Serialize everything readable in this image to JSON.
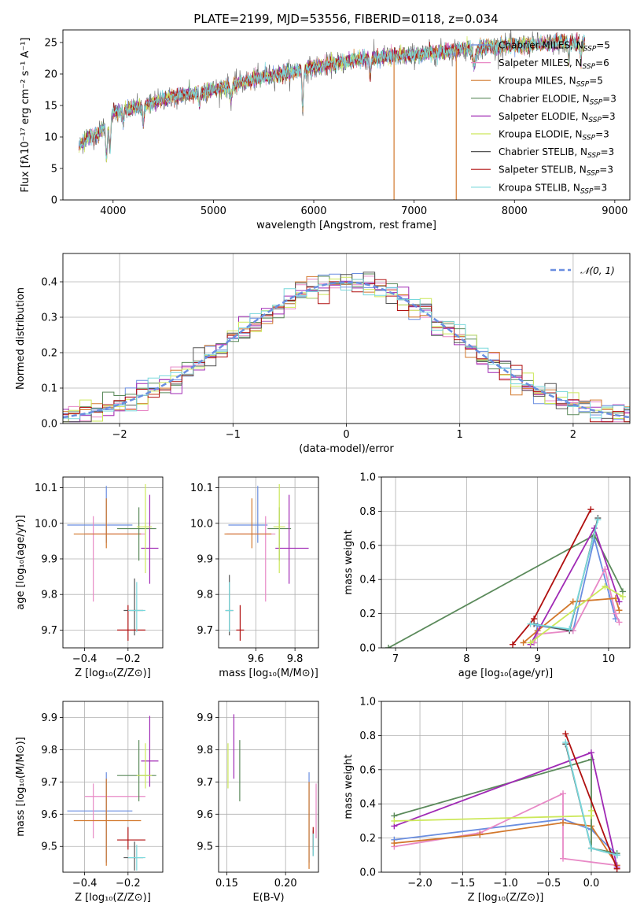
{
  "title": "PLATE=2199, MJD=53556, FIBERID=0118, z=0.034",
  "models": [
    {
      "name": "Chabrier MILES, N",
      "sub": "SSP",
      "eq": "=5",
      "color": "#6a8ee0"
    },
    {
      "name": "Salpeter MILES, N",
      "sub": "SSP",
      "eq": "=6",
      "color": "#e889c6"
    },
    {
      "name": "Kroupa MILES, N",
      "sub": "SSP",
      "eq": "=5",
      "color": "#d2782c"
    },
    {
      "name": "Chabrier ELODIE, N",
      "sub": "SSP",
      "eq": "=3",
      "color": "#5b8a5b"
    },
    {
      "name": "Salpeter ELODIE, N",
      "sub": "SSP",
      "eq": "=3",
      "color": "#a02ab5"
    },
    {
      "name": "Kroupa ELODIE, N",
      "sub": "SSP",
      "eq": "=3",
      "color": "#cce85a"
    },
    {
      "name": "Chabrier STELIB, N",
      "sub": "SSP",
      "eq": "=3",
      "color": "#555555"
    },
    {
      "name": "Salpeter STELIB, N",
      "sub": "SSP",
      "eq": "=3",
      "color": "#b01010"
    },
    {
      "name": "Kroupa STELIB, N",
      "sub": "SSP",
      "eq": "=3",
      "color": "#78d8dc"
    }
  ],
  "chart_data": [
    {
      "id": "spectrum",
      "type": "line",
      "xlabel": "wavelength [Angstrom, rest frame]",
      "ylabel": "Flux [fλ10⁻¹⁷ erg cm⁻² s⁻¹ A⁻¹]",
      "xlim": [
        3500,
        9150
      ],
      "ylim": [
        0,
        27
      ],
      "xticks": [
        4000,
        5000,
        6000,
        7000,
        8000,
        9000
      ],
      "yticks": [
        0,
        5,
        10,
        15,
        20,
        25
      ],
      "x_range": [
        3660,
        8700
      ],
      "continuum": {
        "x": [
          3660,
          3750,
          3850,
          3950,
          4000,
          4200,
          4500,
          5000,
          5500,
          6000,
          6500,
          7000,
          7500,
          8000,
          8500,
          8700
        ],
        "y": [
          8.5,
          10,
          10.5,
          12.5,
          14,
          14.5,
          16,
          17.5,
          19.5,
          21,
          22.5,
          23,
          24,
          24.5,
          25,
          24.8
        ]
      },
      "dips": [
        {
          "x": 3934,
          "depth": 5.5,
          "w": 12
        },
        {
          "x": 3969,
          "depth": 5,
          "w": 12
        },
        {
          "x": 4102,
          "depth": 2.5,
          "w": 8
        },
        {
          "x": 4300,
          "depth": 3,
          "w": 12
        },
        {
          "x": 4861,
          "depth": 2.5,
          "w": 8
        },
        {
          "x": 5175,
          "depth": 2,
          "w": 14
        },
        {
          "x": 5890,
          "depth": 6,
          "w": 10
        },
        {
          "x": 6563,
          "depth": 3,
          "w": 10
        },
        {
          "x": 7600,
          "depth": 2.5,
          "w": 20
        },
        {
          "x": 8542,
          "depth": 3,
          "w": 8
        },
        {
          "x": 8662,
          "depth": 3,
          "w": 8
        }
      ],
      "steep_drops": [
        {
          "x": 6800,
          "to": 0,
          "model": 2
        },
        {
          "x": 7420,
          "to": 0,
          "model": 2
        }
      ]
    },
    {
      "id": "residuals",
      "type": "histogram",
      "xlabel": "(data-model)/error",
      "ylabel": "Normed distribution",
      "xlim": [
        -2.5,
        2.5
      ],
      "ylim": [
        0,
        0.48
      ],
      "xticks": [
        -2,
        -1,
        0,
        1,
        2
      ],
      "yticks": [
        0,
        0.1,
        0.2,
        0.3,
        0.4
      ],
      "bin_width": 0.1,
      "reference_label": "𝒩(0, 1)",
      "reference_color": "#6a8ee0"
    },
    {
      "id": "age_vs_Z",
      "type": "errorbar",
      "xlabel": "Z [log₁₀(Z/Z⊙)]",
      "ylabel": "age  [log₁₀(age/yr)]",
      "xlim": [
        -0.5,
        -0.04
      ],
      "ylim": [
        9.65,
        10.13
      ],
      "xticks": [
        -0.4,
        -0.2
      ],
      "yticks": [
        9.7,
        9.8,
        9.9,
        10.0,
        10.1
      ],
      "points": [
        {
          "m": 0,
          "x": -0.3,
          "y": 9.995,
          "xerr": [
            0.18,
            0.12
          ],
          "yerr": [
            0.05,
            0.11
          ]
        },
        {
          "m": 1,
          "x": -0.36,
          "y": 9.97,
          "xerr": [
            0.04,
            0.24
          ],
          "yerr": [
            0.19,
            0.05
          ]
        },
        {
          "m": 2,
          "x": -0.3,
          "y": 9.97,
          "xerr": [
            0.15,
            0.16
          ],
          "yerr": [
            0.04,
            0.1
          ]
        },
        {
          "m": 3,
          "x": -0.15,
          "y": 9.985,
          "xerr": [
            0.1,
            0.08
          ],
          "yerr": [
            0.09,
            0.06
          ]
        },
        {
          "m": 4,
          "x": -0.1,
          "y": 9.93,
          "xerr": [
            0.04,
            0.04
          ],
          "yerr": [
            0.1,
            0.15
          ]
        },
        {
          "m": 5,
          "x": -0.12,
          "y": 9.99,
          "xerr": [
            0.04,
            0.03
          ],
          "yerr": [
            0.13,
            0.12
          ]
        },
        {
          "m": 6,
          "x": -0.17,
          "y": 9.755,
          "xerr": [
            0.05,
            0.04
          ],
          "yerr": [
            0.07,
            0.09
          ]
        },
        {
          "m": 7,
          "x": -0.2,
          "y": 9.7,
          "xerr": [
            0.05,
            0.08
          ],
          "yerr": [
            0.03,
            0.07
          ]
        },
        {
          "m": 8,
          "x": -0.16,
          "y": 9.755,
          "xerr": [
            0.04,
            0.04
          ],
          "yerr": [
            0.06,
            0.08
          ]
        }
      ]
    },
    {
      "id": "age_vs_mass",
      "type": "errorbar",
      "xlabel": "mass [log₁₀(M/M⊙)]",
      "ylabel": "",
      "xlim": [
        9.41,
        9.92
      ],
      "ylim": [
        9.65,
        10.13
      ],
      "xticks": [
        9.6,
        9.8
      ],
      "yticks": [
        9.7,
        9.8,
        9.9,
        10.0,
        10.1
      ],
      "points": [
        {
          "m": 0,
          "x": 9.61,
          "y": 9.995,
          "xerr": [
            0.15,
            0.05
          ],
          "yerr": [
            0.05,
            0.11
          ]
        },
        {
          "m": 1,
          "x": 9.65,
          "y": 9.97,
          "xerr": [
            0.2,
            0.05
          ],
          "yerr": [
            0.19,
            0.05
          ]
        },
        {
          "m": 2,
          "x": 9.58,
          "y": 9.97,
          "xerr": [
            0.14,
            0.1
          ],
          "yerr": [
            0.04,
            0.1
          ]
        },
        {
          "m": 3,
          "x": 9.72,
          "y": 9.985,
          "xerr": [
            0.06,
            0.06
          ],
          "yerr": [
            0.09,
            0.06
          ]
        },
        {
          "m": 4,
          "x": 9.77,
          "y": 9.93,
          "xerr": [
            0.07,
            0.1
          ],
          "yerr": [
            0.1,
            0.15
          ]
        },
        {
          "m": 5,
          "x": 9.72,
          "y": 9.99,
          "xerr": [
            0.03,
            0.03
          ],
          "yerr": [
            0.13,
            0.12
          ]
        },
        {
          "m": 6,
          "x": 9.465,
          "y": 9.755,
          "xerr": [
            0.02,
            0.02
          ],
          "yerr": [
            0.07,
            0.1
          ]
        },
        {
          "m": 7,
          "x": 9.52,
          "y": 9.7,
          "xerr": [
            0.02,
            0.02
          ],
          "yerr": [
            0.03,
            0.07
          ]
        },
        {
          "m": 8,
          "x": 9.465,
          "y": 9.755,
          "xerr": [
            0.02,
            0.02
          ],
          "yerr": [
            0.06,
            0.08
          ]
        }
      ]
    },
    {
      "id": "weight_vs_age",
      "type": "line",
      "xlabel": "age  [log₁₀(age/yr)]",
      "ylabel": "mass weight",
      "xlim": [
        6.8,
        10.3
      ],
      "ylim": [
        0,
        1
      ],
      "xticks": [
        7,
        8,
        9,
        10
      ],
      "yticks": [
        0,
        0.2,
        0.4,
        0.6,
        0.8,
        1.0
      ],
      "series": [
        {
          "m": 0,
          "x": [
            8.95,
            9.0,
            9.5,
            9.8,
            10.1
          ],
          "y": [
            0.03,
            0.13,
            0.1,
            0.64,
            0.17
          ]
        },
        {
          "m": 1,
          "x": [
            8.95,
            9.0,
            9.5,
            9.95,
            10.1,
            10.15
          ],
          "y": [
            0.03,
            0.08,
            0.1,
            0.46,
            0.2,
            0.15
          ]
        },
        {
          "m": 2,
          "x": [
            8.8,
            9.0,
            9.5,
            10.1,
            10.15
          ],
          "y": [
            0.03,
            0.1,
            0.27,
            0.29,
            0.22
          ]
        },
        {
          "m": 3,
          "x": [
            6.9,
            9.8,
            10.2
          ],
          "y": [
            0.0,
            0.66,
            0.33
          ]
        },
        {
          "m": 4,
          "x": [
            8.9,
            9.8,
            10.15
          ],
          "y": [
            0.02,
            0.7,
            0.27
          ]
        },
        {
          "m": 5,
          "x": [
            8.9,
            9.95,
            10.2
          ],
          "y": [
            0.03,
            0.36,
            0.3
          ]
        },
        {
          "m": 6,
          "x": [
            8.95,
            9.45,
            9.85
          ],
          "y": [
            0.14,
            0.1,
            0.76
          ]
        },
        {
          "m": 7,
          "x": [
            8.65,
            8.95,
            9.75
          ],
          "y": [
            0.02,
            0.17,
            0.81
          ]
        },
        {
          "m": 8,
          "x": [
            8.9,
            9.45,
            9.85
          ],
          "y": [
            0.14,
            0.11,
            0.75
          ]
        }
      ]
    },
    {
      "id": "mass_vs_Z",
      "type": "errorbar",
      "xlabel": "Z [log₁₀(Z/Z⊙)]",
      "ylabel": "mass [log₁₀(M/M⊙)]",
      "xlim": [
        -0.5,
        -0.04
      ],
      "ylim": [
        9.42,
        9.95
      ],
      "xticks": [
        -0.4,
        -0.2
      ],
      "yticks": [
        9.5,
        9.6,
        9.7,
        9.8,
        9.9
      ],
      "points": [
        {
          "m": 0,
          "x": -0.3,
          "y": 9.61,
          "xerr": [
            0.18,
            0.12
          ],
          "yerr": [
            0.16,
            0.12
          ]
        },
        {
          "m": 1,
          "x": -0.36,
          "y": 9.655,
          "xerr": [
            0.04,
            0.24
          ],
          "yerr": [
            0.13,
            0.04
          ]
        },
        {
          "m": 2,
          "x": -0.3,
          "y": 9.58,
          "xerr": [
            0.15,
            0.16
          ],
          "yerr": [
            0.14,
            0.13
          ]
        },
        {
          "m": 3,
          "x": -0.15,
          "y": 9.72,
          "xerr": [
            0.1,
            0.08
          ],
          "yerr": [
            0.08,
            0.11
          ]
        },
        {
          "m": 4,
          "x": -0.1,
          "y": 9.765,
          "xerr": [
            0.04,
            0.04
          ],
          "yerr": [
            0.08,
            0.14
          ]
        },
        {
          "m": 5,
          "x": -0.12,
          "y": 9.72,
          "xerr": [
            0.04,
            0.03
          ],
          "yerr": [
            0.04,
            0.1
          ]
        },
        {
          "m": 6,
          "x": -0.17,
          "y": 9.465,
          "xerr": [
            0.05,
            0.04
          ],
          "yerr": [
            0.04,
            0.05
          ]
        },
        {
          "m": 7,
          "x": -0.2,
          "y": 9.52,
          "xerr": [
            0.05,
            0.08
          ],
          "yerr": [
            0.03,
            0.04
          ]
        },
        {
          "m": 8,
          "x": -0.16,
          "y": 9.465,
          "xerr": [
            0.04,
            0.04
          ],
          "yerr": [
            0.04,
            0.04
          ]
        }
      ]
    },
    {
      "id": "mass_vs_ebv",
      "type": "errorbar",
      "xlabel": "E(B-V)",
      "ylabel": "",
      "xlim": [
        0.143,
        0.228
      ],
      "ylim": [
        9.42,
        9.95
      ],
      "xticks": [
        0.15,
        0.2
      ],
      "yticks": [
        9.5,
        9.6,
        9.7,
        9.8,
        9.9
      ],
      "points": [
        {
          "m": 0,
          "x": 0.22,
          "y": 9.61,
          "xerr": [
            0,
            0
          ],
          "yerr": [
            0.16,
            0.12
          ]
        },
        {
          "m": 1,
          "x": 0.226,
          "y": 9.655,
          "xerr": [
            0,
            0
          ],
          "yerr": [
            0.13,
            0.04
          ]
        },
        {
          "m": 2,
          "x": 0.22,
          "y": 9.58,
          "xerr": [
            0,
            0
          ],
          "yerr": [
            0.15,
            0.12
          ]
        },
        {
          "m": 3,
          "x": 0.161,
          "y": 9.72,
          "xerr": [
            0,
            0
          ],
          "yerr": [
            0.08,
            0.11
          ]
        },
        {
          "m": 4,
          "x": 0.156,
          "y": 9.81,
          "xerr": [
            0,
            0
          ],
          "yerr": [
            0.1,
            0.1
          ]
        },
        {
          "m": 5,
          "x": 0.151,
          "y": 9.72,
          "xerr": [
            0,
            0
          ],
          "yerr": [
            0.04,
            0.1
          ]
        },
        {
          "m": 6,
          "x": 0.2235,
          "y": 9.5,
          "xerr": [
            0,
            0
          ],
          "yerr": [
            0.03,
            0.05
          ]
        },
        {
          "m": 7,
          "x": 0.2235,
          "y": 9.52,
          "xerr": [
            0,
            0
          ],
          "yerr": [
            0.03,
            0.04
          ]
        },
        {
          "m": 8,
          "x": 0.2235,
          "y": 9.5,
          "xerr": [
            0,
            0
          ],
          "yerr": [
            0.03,
            0.04
          ]
        }
      ]
    },
    {
      "id": "weight_vs_Z",
      "type": "line",
      "xlabel": "Z [log₁₀(Z/Z⊙)]",
      "ylabel": "mass weight",
      "xlim": [
        -2.45,
        0.45
      ],
      "ylim": [
        0,
        1
      ],
      "xticks": [
        -2.0,
        -1.5,
        -1.0,
        -0.5,
        0.0
      ],
      "yticks": [
        0,
        0.2,
        0.4,
        0.6,
        0.8,
        1.0
      ],
      "series": [
        {
          "m": 0,
          "x": [
            -2.3,
            -0.33,
            0.0,
            0.3
          ],
          "y": [
            0.19,
            0.31,
            0.25,
            0.1
          ]
        },
        {
          "m": 1,
          "x": [
            -2.3,
            -1.3,
            -0.33,
            -0.33,
            0.3
          ],
          "y": [
            0.15,
            0.23,
            0.46,
            0.08,
            0.04
          ]
        },
        {
          "m": 2,
          "x": [
            -2.3,
            -1.3,
            -0.33,
            0.0,
            0.3
          ],
          "y": [
            0.17,
            0.22,
            0.29,
            0.27,
            0.04
          ]
        },
        {
          "m": 3,
          "x": [
            -2.3,
            0.0,
            0.0,
            0.3
          ],
          "y": [
            0.33,
            0.66,
            0.14,
            0.11
          ]
        },
        {
          "m": 4,
          "x": [
            -2.3,
            0.0,
            0.3
          ],
          "y": [
            0.27,
            0.7,
            0.03
          ]
        },
        {
          "m": 5,
          "x": [
            -2.3,
            0.0,
            0.0
          ],
          "y": [
            0.3,
            0.33,
            0.36
          ]
        },
        {
          "m": 6,
          "x": [
            -0.3,
            0.0,
            0.3
          ],
          "y": [
            0.75,
            0.14,
            0.1
          ]
        },
        {
          "m": 7,
          "x": [
            -0.3,
            0.3
          ],
          "y": [
            0.81,
            0.02
          ]
        },
        {
          "m": 8,
          "x": [
            -0.3,
            0.0,
            0.3
          ],
          "y": [
            0.76,
            0.14,
            0.1
          ]
        }
      ]
    }
  ]
}
